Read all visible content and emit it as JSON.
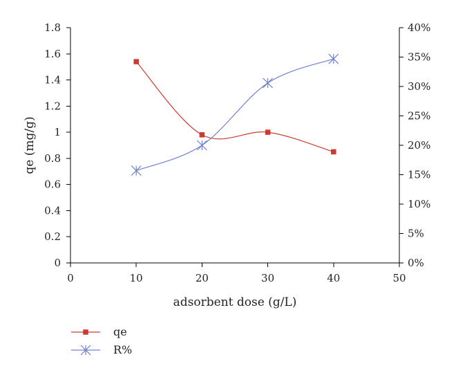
{
  "chart_data": {
    "type": "line",
    "smooth": true,
    "grid": false,
    "legend_position": "bottom-left",
    "x": [
      10,
      20,
      30,
      40
    ],
    "xlim": [
      0,
      50
    ],
    "xticks": [
      0,
      10,
      20,
      30,
      40,
      50
    ],
    "xlabel": "adsorbent dose (g/L)",
    "ylabel": "qe (mg/g)",
    "ylim": [
      0,
      1.8
    ],
    "yticks": [
      0,
      0.2,
      0.4,
      0.6,
      0.8,
      1,
      1.2,
      1.4,
      1.6,
      1.8
    ],
    "ytick_labels": [
      "0",
      "0.2",
      "0.4",
      "0.6",
      "0.8",
      "1",
      "1.2",
      "1.4",
      "1.6",
      "1.8"
    ],
    "y2lim": [
      0,
      40
    ],
    "y2ticks": [
      0,
      5,
      10,
      15,
      20,
      25,
      30,
      35,
      40
    ],
    "y2tick_labels": [
      "0%",
      "5%",
      "10%",
      "15%",
      "20%",
      "25%",
      "30%",
      "35%",
      "40%"
    ],
    "series": [
      {
        "name": "qe",
        "axis": "left",
        "marker": "square",
        "color": "#cc3b33",
        "values": [
          1.54,
          0.98,
          1.0,
          0.85
        ]
      },
      {
        "name": "R%",
        "axis": "right",
        "marker": "asterisk",
        "color": "#7080cf",
        "values": [
          15.7,
          20.0,
          30.6,
          34.7
        ]
      }
    ]
  }
}
